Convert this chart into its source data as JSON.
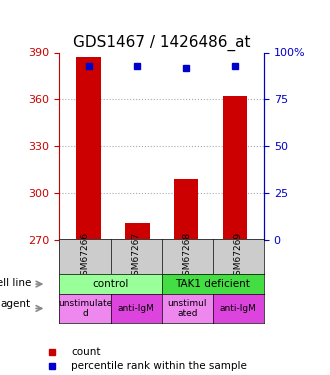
{
  "title": "GDS1467 / 1426486_at",
  "samples": [
    "GSM67266",
    "GSM67267",
    "GSM67268",
    "GSM67269"
  ],
  "bar_values": [
    387,
    281,
    309,
    362
  ],
  "percentile_values": [
    93,
    93,
    92,
    93
  ],
  "ylim_left": [
    270,
    390
  ],
  "ylim_right": [
    0,
    100
  ],
  "yticks_left": [
    270,
    300,
    330,
    360,
    390
  ],
  "yticks_right": [
    0,
    25,
    50,
    75,
    100
  ],
  "bar_color": "#cc0000",
  "percentile_color": "#0000cc",
  "bar_width": 0.5,
  "cell_line_labels": [
    "control",
    "TAK1 deficient"
  ],
  "cell_line_spans": [
    [
      0,
      1
    ],
    [
      2,
      3
    ]
  ],
  "cell_line_colors": [
    "#99ff99",
    "#44dd44"
  ],
  "agent_labels": [
    "unstimulate\nd",
    "anti-IgM",
    "unstimul\nated",
    "anti-IgM"
  ],
  "agent_colors": [
    "#ee88ee",
    "#dd44dd",
    "#ee88ee",
    "#dd44dd"
  ],
  "legend_count_color": "#cc0000",
  "legend_percentile_color": "#0000cc",
  "grid_color": "#aaaaaa",
  "background_color": "#ffffff",
  "title_fontsize": 11,
  "tick_fontsize": 8
}
